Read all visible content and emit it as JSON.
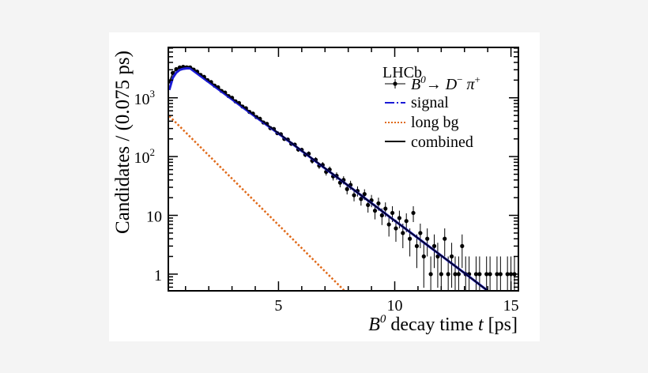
{
  "chart_data": {
    "type": "scatter",
    "xlabel_main": "B",
    "xlabel_sup": "0",
    "xlabel_rest": " decay time ",
    "xlabel_var": "t",
    "xlabel_unit": " [ps]",
    "ylabel": "Candidates / (0.075 ps)",
    "xlim": [
      0.26,
      15.32
    ],
    "ylim": [
      0.52,
      7200
    ],
    "yscale": "log",
    "grid": false,
    "x_ticks": [
      {
        "v": 5,
        "label": "5"
      },
      {
        "v": 10,
        "label": "10"
      },
      {
        "v": 15,
        "label": "15"
      }
    ],
    "y_ticks": [
      {
        "v": 1,
        "base": "1",
        "exp": ""
      },
      {
        "v": 10,
        "base": "10",
        "exp": ""
      },
      {
        "v": 100,
        "base": "10",
        "exp": "2"
      },
      {
        "v": 1000,
        "base": "10",
        "exp": "3"
      }
    ],
    "legend": {
      "placement": "top-right",
      "header": "LHCb",
      "entries": [
        {
          "key": "data",
          "label_parts": [
            "B",
            "0",
            "→ D",
            "−",
            " π",
            "+"
          ]
        },
        {
          "key": "signal",
          "label": "signal"
        },
        {
          "key": "bg",
          "label": "long bg"
        },
        {
          "key": "combined",
          "label": "combined"
        }
      ]
    },
    "colors": {
      "data": "#000000",
      "signal": "#1a1ad6",
      "bg": "#e06a1a",
      "combined": "#000000"
    },
    "data_points": {
      "x": [
        0.3,
        0.45,
        0.6,
        0.75,
        0.9,
        1.05,
        1.2,
        1.35,
        1.5,
        1.65,
        1.8,
        1.95,
        2.1,
        2.25,
        2.4,
        2.55,
        2.7,
        2.85,
        3.0,
        3.15,
        3.3,
        3.45,
        3.6,
        3.75,
        3.9,
        4.05,
        4.2,
        4.35,
        4.5,
        4.65,
        4.8,
        4.95,
        5.1,
        5.25,
        5.4,
        5.55,
        5.7,
        5.85,
        6.0,
        6.15,
        6.3,
        6.45,
        6.6,
        6.75,
        6.9,
        7.05,
        7.2,
        7.35,
        7.5,
        7.65,
        7.8,
        7.95,
        8.1,
        8.25,
        8.4,
        8.55,
        8.7,
        8.85,
        9.0,
        9.15,
        9.3,
        9.45,
        9.6,
        9.75,
        9.9,
        10.05,
        10.2,
        10.35,
        10.5,
        10.65,
        10.8,
        10.95,
        11.1,
        11.25,
        11.4,
        11.55,
        11.7,
        11.85,
        12.0,
        12.15,
        12.3,
        12.45,
        12.6,
        12.75,
        12.9,
        13.05,
        13.2,
        13.35,
        13.5,
        13.65,
        13.8,
        13.95,
        14.1,
        14.25,
        14.4,
        14.55,
        14.7,
        14.85,
        15.0,
        15.15
      ],
      "y": [
        1900,
        2650,
        3080,
        3290,
        3360,
        3300,
        3280,
        3020,
        2790,
        2450,
        2270,
        1990,
        1850,
        1610,
        1510,
        1310,
        1230,
        1070,
        1000,
        870,
        815,
        710,
        665,
        575,
        540,
        470,
        440,
        380,
        360,
        305,
        295,
        250,
        240,
        200,
        195,
        165,
        160,
        132,
        130,
        108,
        112,
        85,
        88,
        70,
        72,
        55,
        60,
        46,
        47,
        36,
        40,
        28,
        33,
        22,
        26,
        19,
        23,
        15,
        18,
        12,
        16,
        10,
        13,
        7,
        11,
        6,
        9,
        5,
        8,
        4,
        11,
        3,
        5,
        2,
        4,
        1,
        3,
        2,
        1,
        4,
        1,
        2,
        1,
        1,
        3,
        1,
        1,
        0,
        1,
        1,
        0,
        1,
        1,
        0,
        1,
        1,
        0,
        1,
        1,
        1
      ]
    },
    "signal_curve": {
      "x": [
        0.3,
        0.45,
        0.6,
        0.75,
        0.9,
        1.05,
        1.2,
        1.5,
        2,
        3,
        4,
        5,
        6,
        7,
        8,
        9,
        10,
        11,
        12,
        13,
        14
      ],
      "y": [
        1360,
        2180,
        2680,
        2975,
        3115,
        3170,
        3165,
        2590,
        1850,
        942,
        478,
        247,
        125,
        63,
        32,
        16.1,
        8.1,
        4.1,
        2.07,
        1.04,
        0.52
      ]
    },
    "combined_curve": {
      "x": [
        0.3,
        0.45,
        0.6,
        0.75,
        0.9,
        1.05,
        1.2,
        1.5,
        2,
        3,
        4,
        5,
        6,
        7,
        8,
        9,
        10,
        11,
        12,
        13,
        14
      ],
      "y": [
        1850,
        2600,
        3050,
        3300,
        3400,
        3420,
        3381,
        2754,
        1954,
        984,
        495,
        250,
        126,
        63.5,
        32,
        16.1,
        8.1,
        4.1,
        2.07,
        1.04,
        0.52
      ]
    },
    "bg_curve": {
      "x": [
        0.3,
        8.0
      ],
      "y": [
        490,
        0.45
      ]
    }
  }
}
